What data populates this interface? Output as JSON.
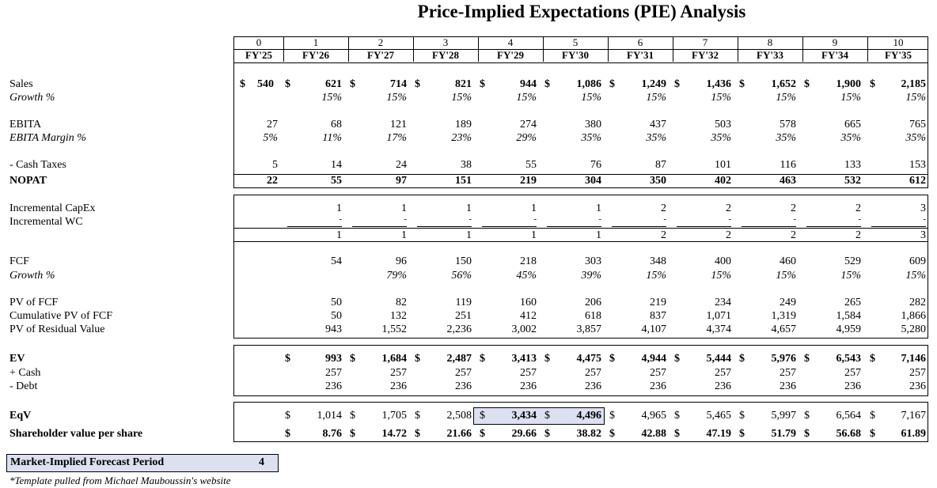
{
  "title": "Price-Implied Expectations (PIE) Analysis",
  "periods": [
    "0",
    "1",
    "2",
    "3",
    "4",
    "5",
    "6",
    "7",
    "8",
    "9",
    "10"
  ],
  "years": [
    "FY'25",
    "FY'26",
    "FY'27",
    "FY'28",
    "FY'29",
    "FY'30",
    "FY'31",
    "FY'32",
    "FY'33",
    "FY'34",
    "FY'35"
  ],
  "rows": {
    "sales": {
      "label": "Sales",
      "dollar": true,
      "values": [
        "540",
        "621",
        "714",
        "821",
        "944",
        "1,086",
        "1,249",
        "1,436",
        "1,652",
        "1,900",
        "2,185"
      ]
    },
    "sales_growth": {
      "label": "Growth %",
      "values": [
        "",
        "15%",
        "15%",
        "15%",
        "15%",
        "15%",
        "15%",
        "15%",
        "15%",
        "15%",
        "15%"
      ]
    },
    "ebita": {
      "label": "EBITA",
      "values": [
        "27",
        "68",
        "121",
        "189",
        "274",
        "380",
        "437",
        "503",
        "578",
        "665",
        "765"
      ]
    },
    "ebita_margin": {
      "label": "EBITA Margin %",
      "values": [
        "5%",
        "11%",
        "17%",
        "23%",
        "29%",
        "35%",
        "35%",
        "35%",
        "35%",
        "35%",
        "35%"
      ]
    },
    "cash_taxes": {
      "label": "- Cash Taxes",
      "values": [
        "5",
        "14",
        "24",
        "38",
        "55",
        "76",
        "87",
        "101",
        "116",
        "133",
        "153"
      ]
    },
    "nopat": {
      "label": "NOPAT",
      "values": [
        "22",
        "55",
        "97",
        "151",
        "219",
        "304",
        "350",
        "402",
        "463",
        "532",
        "612"
      ]
    },
    "inc_capex": {
      "label": "Incremental CapEx",
      "values": [
        "",
        "1",
        "1",
        "1",
        "1",
        "1",
        "2",
        "2",
        "2",
        "2",
        "3"
      ]
    },
    "inc_wc": {
      "label": "Incremental WC",
      "values": [
        "",
        "-",
        "-",
        "-",
        "-",
        "-",
        "-",
        "-",
        "-",
        "-",
        "-"
      ]
    },
    "reinvestment_total": {
      "label": "",
      "values": [
        "",
        "1",
        "1",
        "1",
        "1",
        "1",
        "2",
        "2",
        "2",
        "2",
        "3"
      ]
    },
    "fcf": {
      "label": "FCF",
      "values": [
        "",
        "54",
        "96",
        "150",
        "218",
        "303",
        "348",
        "400",
        "460",
        "529",
        "609"
      ]
    },
    "fcf_growth": {
      "label": "Growth %",
      "values": [
        "",
        "",
        "79%",
        "56%",
        "45%",
        "39%",
        "15%",
        "15%",
        "15%",
        "15%",
        "15%"
      ]
    },
    "pv_fcf": {
      "label": "PV of FCF",
      "values": [
        "",
        "50",
        "82",
        "119",
        "160",
        "206",
        "219",
        "234",
        "249",
        "265",
        "282"
      ]
    },
    "cum_pv_fcf": {
      "label": "Cumulative PV of FCF",
      "values": [
        "",
        "50",
        "132",
        "251",
        "412",
        "618",
        "837",
        "1,071",
        "1,319",
        "1,584",
        "1,866"
      ]
    },
    "pv_residual": {
      "label": "PV of Residual Value",
      "values": [
        "",
        "943",
        "1,552",
        "2,236",
        "3,002",
        "3,857",
        "4,107",
        "4,374",
        "4,657",
        "4,959",
        "5,280"
      ]
    },
    "ev": {
      "label": "EV",
      "dollar": true,
      "values": [
        "",
        "993",
        "1,684",
        "2,487",
        "3,413",
        "4,475",
        "4,944",
        "5,444",
        "5,976",
        "6,543",
        "7,146"
      ]
    },
    "cash": {
      "label": "+ Cash",
      "values": [
        "",
        "257",
        "257",
        "257",
        "257",
        "257",
        "257",
        "257",
        "257",
        "257",
        "257"
      ]
    },
    "debt": {
      "label": "- Debt",
      "values": [
        "",
        "236",
        "236",
        "236",
        "236",
        "236",
        "236",
        "236",
        "236",
        "236",
        "236"
      ]
    },
    "eqv": {
      "label": "EqV",
      "dollar": true,
      "values": [
        "",
        "1,014",
        "1,705",
        "2,508",
        "3,434",
        "4,496",
        "4,965",
        "5,465",
        "5,997",
        "6,564",
        "7,167"
      ]
    },
    "value_per_share": {
      "label": "Shareholder value per share",
      "dollar": true,
      "values": [
        "",
        "8.76",
        "14.72",
        "21.66",
        "29.66",
        "38.82",
        "42.88",
        "47.19",
        "51.79",
        "56.68",
        "61.89"
      ]
    }
  },
  "currency_symbol": "$",
  "implied_period": {
    "label": "Market-Implied Forecast Period",
    "value": "4"
  },
  "footnote": "*Template pulled from Michael Mauboussin's website",
  "colors": {
    "highlight": "#dce0f0",
    "border": "#000000"
  }
}
